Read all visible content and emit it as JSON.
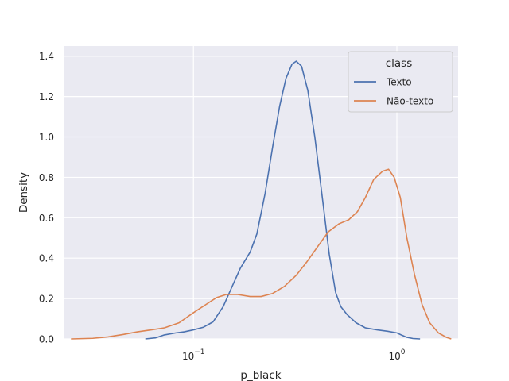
{
  "chart_data": {
    "type": "line",
    "title": "",
    "xlabel": "p_black",
    "ylabel": "Density",
    "xscale": "log",
    "xlim": [
      0.023,
      2.0
    ],
    "ylim": [
      0,
      1.45
    ],
    "yticks": [
      0.0,
      0.2,
      0.4,
      0.6,
      0.8,
      1.0,
      1.2,
      1.4
    ],
    "ytick_labels": [
      "0.0",
      "0.2",
      "0.4",
      "0.6",
      "0.8",
      "1.0",
      "1.2",
      "1.4"
    ],
    "xticks": [
      0.1,
      1.0
    ],
    "xtick_labels": [
      {
        "base": "10",
        "exp": "−1"
      },
      {
        "base": "10",
        "exp": "0"
      }
    ],
    "grid": true,
    "background": "#eaeaf2",
    "legend": {
      "title": "class",
      "placement": "top-right"
    },
    "series": [
      {
        "name": "Texto",
        "color": "#4c72b0",
        "points": [
          [
            0.058,
            0.0
          ],
          [
            0.065,
            0.005
          ],
          [
            0.072,
            0.02
          ],
          [
            0.082,
            0.03
          ],
          [
            0.09,
            0.035
          ],
          [
            0.1,
            0.045
          ],
          [
            0.112,
            0.058
          ],
          [
            0.125,
            0.085
          ],
          [
            0.14,
            0.16
          ],
          [
            0.155,
            0.26
          ],
          [
            0.17,
            0.35
          ],
          [
            0.19,
            0.43
          ],
          [
            0.205,
            0.52
          ],
          [
            0.225,
            0.72
          ],
          [
            0.245,
            0.95
          ],
          [
            0.265,
            1.15
          ],
          [
            0.285,
            1.29
          ],
          [
            0.305,
            1.36
          ],
          [
            0.32,
            1.375
          ],
          [
            0.34,
            1.35
          ],
          [
            0.365,
            1.23
          ],
          [
            0.395,
            1.0
          ],
          [
            0.43,
            0.7
          ],
          [
            0.465,
            0.42
          ],
          [
            0.5,
            0.23
          ],
          [
            0.53,
            0.16
          ],
          [
            0.57,
            0.12
          ],
          [
            0.63,
            0.08
          ],
          [
            0.7,
            0.055
          ],
          [
            0.8,
            0.045
          ],
          [
            0.9,
            0.038
          ],
          [
            1.0,
            0.03
          ],
          [
            1.06,
            0.018
          ],
          [
            1.12,
            0.008
          ],
          [
            1.2,
            0.002
          ],
          [
            1.3,
            0.0
          ]
        ]
      },
      {
        "name": "Não-texto",
        "color": "#dd8452",
        "points": [
          [
            0.025,
            0.0
          ],
          [
            0.032,
            0.003
          ],
          [
            0.038,
            0.01
          ],
          [
            0.045,
            0.022
          ],
          [
            0.053,
            0.035
          ],
          [
            0.062,
            0.045
          ],
          [
            0.072,
            0.055
          ],
          [
            0.085,
            0.08
          ],
          [
            0.1,
            0.13
          ],
          [
            0.115,
            0.17
          ],
          [
            0.13,
            0.205
          ],
          [
            0.145,
            0.22
          ],
          [
            0.165,
            0.22
          ],
          [
            0.19,
            0.21
          ],
          [
            0.215,
            0.21
          ],
          [
            0.245,
            0.225
          ],
          [
            0.28,
            0.26
          ],
          [
            0.32,
            0.315
          ],
          [
            0.36,
            0.38
          ],
          [
            0.41,
            0.46
          ],
          [
            0.46,
            0.53
          ],
          [
            0.52,
            0.57
          ],
          [
            0.58,
            0.59
          ],
          [
            0.64,
            0.63
          ],
          [
            0.7,
            0.7
          ],
          [
            0.77,
            0.79
          ],
          [
            0.85,
            0.83
          ],
          [
            0.91,
            0.84
          ],
          [
            0.97,
            0.8
          ],
          [
            1.04,
            0.7
          ],
          [
            1.12,
            0.5
          ],
          [
            1.22,
            0.32
          ],
          [
            1.33,
            0.17
          ],
          [
            1.45,
            0.08
          ],
          [
            1.6,
            0.03
          ],
          [
            1.75,
            0.008
          ],
          [
            1.85,
            0.0
          ]
        ]
      }
    ]
  }
}
